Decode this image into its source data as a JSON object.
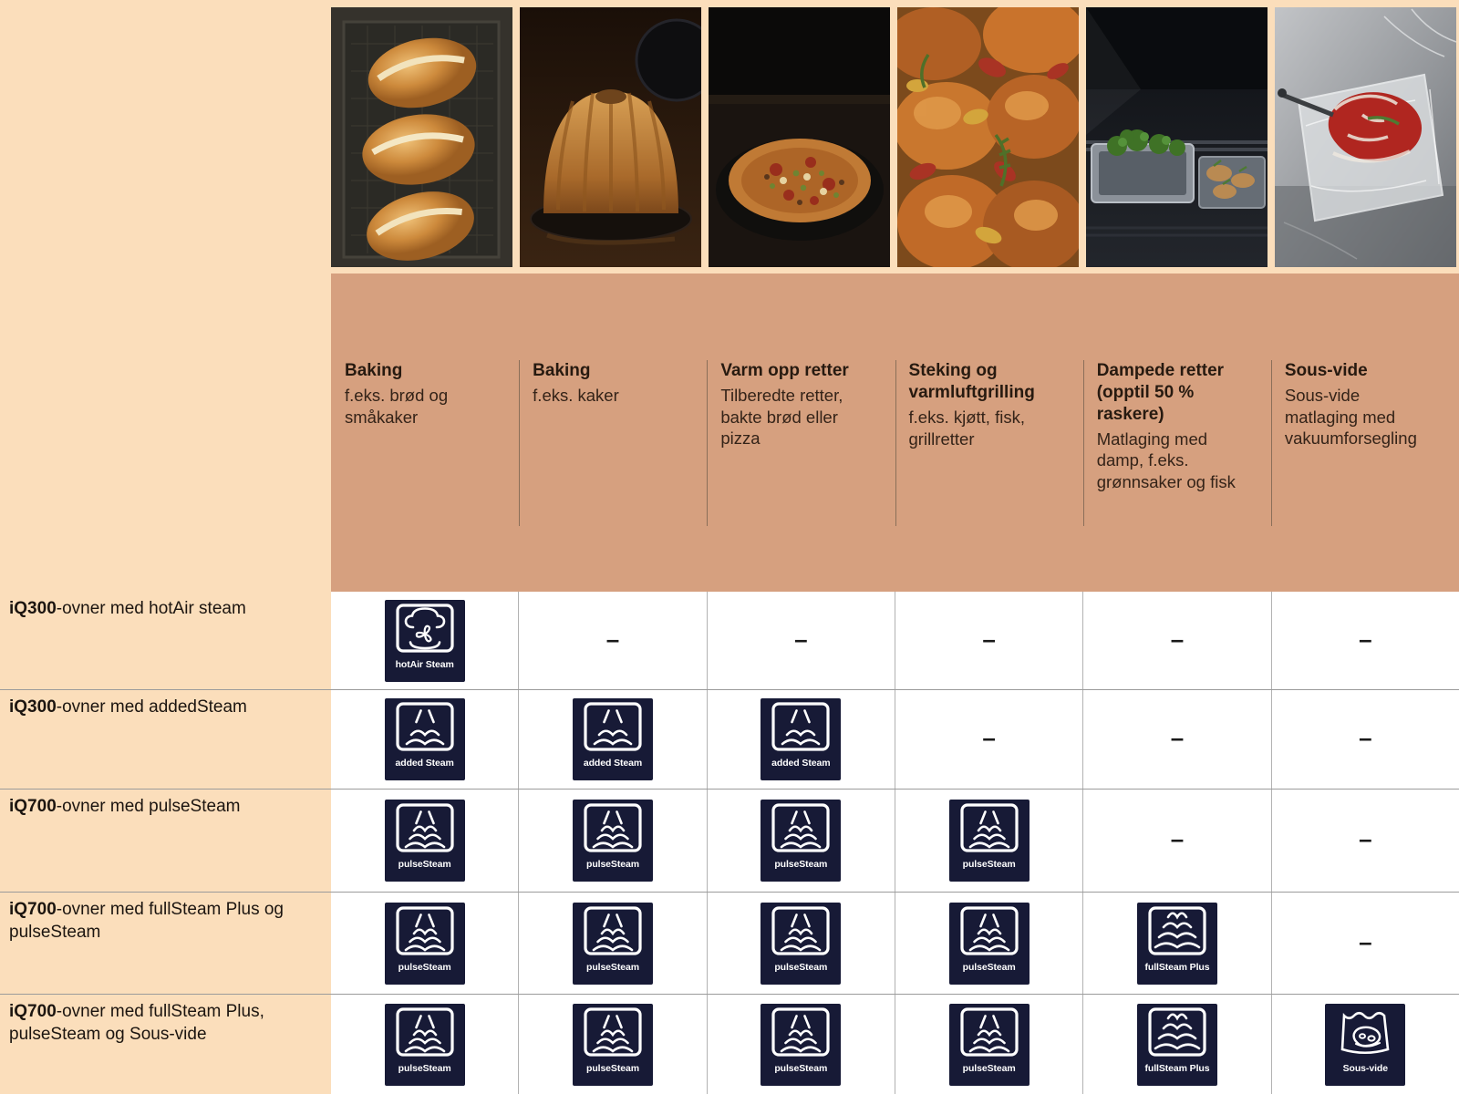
{
  "colors": {
    "page_bg": "#fbdebb",
    "band_bg": "#d6a07f",
    "icon_bg": "#171a36",
    "grid_line": "#9b9b9b",
    "vline": "#b2b2b2",
    "divider": "#8b6f59",
    "cell_bg": "#ffffff",
    "title_color": "#271a10",
    "body_color": "#342318",
    "label_color": "#1c1510",
    "dash_color": "#1a1a1a"
  },
  "photos": [
    {
      "key": "bread",
      "name": "bread-loaves-photo"
    },
    {
      "key": "cake",
      "name": "bundt-cake-photo"
    },
    {
      "key": "pizza",
      "name": "pizza-in-oven-photo"
    },
    {
      "key": "chicken",
      "name": "roast-chicken-vegetables-photo"
    },
    {
      "key": "steamoven",
      "name": "steam-oven-trays-photo"
    },
    {
      "key": "sousvide",
      "name": "vacuum-sealed-steak-photo"
    }
  ],
  "columns": [
    {
      "title": "Baking",
      "desc": "f.eks. brød og småkaker"
    },
    {
      "title": "Baking",
      "desc": "f.eks. kaker"
    },
    {
      "title": "Varm opp retter",
      "desc": "Tilberedte retter, bakte brød eller pizza"
    },
    {
      "title": "Steking og varmluftgrilling",
      "desc": "f.eks. kjøtt, fisk, grillretter"
    },
    {
      "title": "Dampede retter (opptil 50 % raskere)",
      "desc": "Matlaging med damp, f.eks. grønnsaker og fisk"
    },
    {
      "title": "Sous-vide",
      "desc": "Sous-vide matlaging med vakuumforsegling"
    }
  ],
  "icons": {
    "hotair": {
      "label": "hotAir Steam"
    },
    "added": {
      "label": "added Steam"
    },
    "pulse": {
      "label": "pulseSteam"
    },
    "full": {
      "label": "fullSteam Plus"
    },
    "sousvide": {
      "label": "Sous-vide"
    }
  },
  "dash": "–",
  "rows": [
    {
      "label_bold": "iQ300",
      "label_rest": "-ovner med hotAir steam",
      "cells": [
        "hotair",
        "dash",
        "dash",
        "dash",
        "dash",
        "dash"
      ]
    },
    {
      "label_bold": "iQ300",
      "label_rest": "-ovner med addedSteam",
      "cells": [
        "added",
        "added",
        "added",
        "dash",
        "dash",
        "dash"
      ]
    },
    {
      "label_bold": "iQ700",
      "label_rest": "-ovner med pulseSteam",
      "cells": [
        "pulse",
        "pulse",
        "pulse",
        "pulse",
        "dash",
        "dash"
      ]
    },
    {
      "label_bold": "iQ700",
      "label_rest": "-ovner med fullSteam Plus og pulseSteam",
      "cells": [
        "pulse",
        "pulse",
        "pulse",
        "pulse",
        "full",
        "dash"
      ]
    },
    {
      "label_bold": "iQ700",
      "label_rest": "-ovner med fullSteam Plus, pulseSteam og Sous-vide",
      "cells": [
        "pulse",
        "pulse",
        "pulse",
        "pulse",
        "full",
        "sousvide"
      ]
    }
  ]
}
